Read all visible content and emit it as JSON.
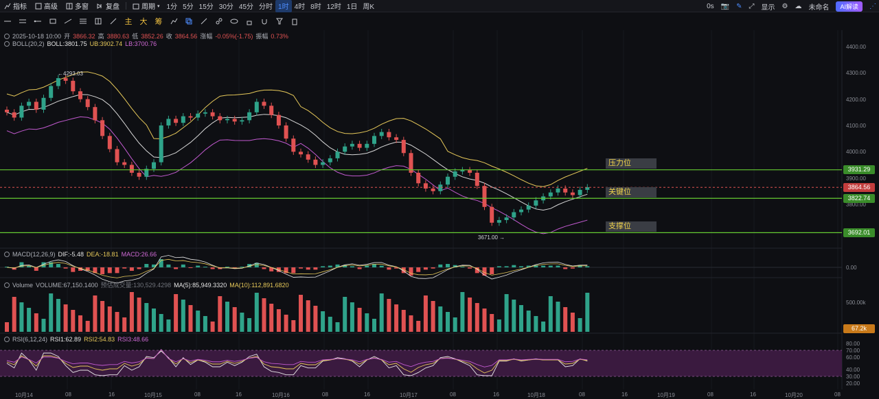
{
  "toolbar": {
    "indicators": "指标",
    "advanced": "高级",
    "multi_window": "多窗",
    "replay": "复盘",
    "period": "周期",
    "timeframes": [
      "1分",
      "5分",
      "15分",
      "30分",
      "45分",
      "分时",
      "1时",
      "4时",
      "8时",
      "12时",
      "1日",
      "周K"
    ],
    "active_timeframe": "1时",
    "delay": "0s",
    "display": "显示",
    "unnamed": "未命名",
    "ai_label": "AI解读"
  },
  "toolbar2": {
    "cn_tools": [
      "主",
      "大",
      "筹"
    ]
  },
  "ohlc": {
    "time": "2025-10-18 10:00",
    "open_lbl": "开",
    "open": "3866.32",
    "high_lbl": "高",
    "high": "3880.63",
    "low_lbl": "低",
    "low": "3852.26",
    "close_lbl": "收",
    "close": "3864.56",
    "change_lbl": "涨幅",
    "change": "-0.05%(-1.75)",
    "amp_lbl": "振幅",
    "amp": "0.73%"
  },
  "boll": {
    "name": "BOLL(20,2)",
    "mid": "BOLL:3801.75",
    "ub": "UB:3902.74",
    "lb": "LB:3700.76"
  },
  "macd": {
    "name": "MACD(12,26,9)",
    "dif": "DIF:-5.48",
    "dea": "DEA:-18.81",
    "macd": "MACD:26.66"
  },
  "volume": {
    "name": "Volume",
    "vol": "VOLUME:67,150.1400",
    "est": "预估成交量:130,529.4298",
    "ma5": "MA(5):85,949.3320",
    "ma10": "MA(10):112,891.6820"
  },
  "rsi": {
    "name": "RSI(6,12,24)",
    "r1": "RSI1:62.89",
    "r2": "RSI2:54.83",
    "r3": "RSI3:48.66"
  },
  "annotations": {
    "high_mark": "←4293.03",
    "low_mark": "3671.00 →"
  },
  "zones": {
    "resistance": "压力位",
    "key": "关键位",
    "support": "支撑位"
  },
  "price_tags": {
    "resistance": "3931.29",
    "current": "3864.56",
    "key": "3822.74",
    "support": "3692.01",
    "volume": "67.2k"
  },
  "y_axis": [
    "4400.00",
    "4300.00",
    "4200.00",
    "4100.00",
    "4000.00",
    "3900.00",
    "3800.00"
  ],
  "macd_axis": [
    "0.00"
  ],
  "vol_axis": [
    "500.00k"
  ],
  "rsi_axis": [
    "80.00",
    "70.00",
    "60.00",
    "40.00",
    "30.00",
    "20.00"
  ],
  "x_axis": [
    "10月14",
    "08",
    "16",
    "10月15",
    "08",
    "16",
    "10月16",
    "08",
    "16",
    "10月17",
    "08",
    "16",
    "10月18",
    "08",
    "16",
    "10月19",
    "08",
    "16",
    "10月20",
    "08"
  ],
  "colors": {
    "up": "#e05252",
    "down": "#2fa38a",
    "zone_line": "#66cc33",
    "boll_ub": "#e7c95a",
    "boll_mid": "#d9d9d9",
    "boll_lb": "#c25ad0"
  },
  "chart_data": {
    "type": "candlestick",
    "levels": {
      "resistance": 3931.29,
      "key": 3822.74,
      "support": 3692.01,
      "current": 3864.56
    },
    "closes": [
      4150,
      4130,
      4175,
      4190,
      4160,
      4205,
      4250,
      4280,
      4270,
      4230,
      4200,
      4170,
      4120,
      4060,
      4010,
      3960,
      3950,
      3920,
      3905,
      3935,
      3960,
      4100,
      4125,
      4110,
      4135,
      4130,
      4145,
      4150,
      4135,
      4120,
      4125,
      4115,
      4120,
      4150,
      4190,
      4175,
      4140,
      4100,
      4050,
      4000,
      3990,
      3970,
      3950,
      3960,
      3975,
      4000,
      4020,
      4030,
      4015,
      4030,
      4060,
      4075,
      4055,
      4045,
      3995,
      3920,
      3880,
      3860,
      3850,
      3875,
      3905,
      3925,
      3930,
      3920,
      3870,
      3790,
      3730,
      3740,
      3750,
      3770,
      3780,
      3795,
      3815,
      3830,
      3845,
      3860,
      3845,
      3835,
      3855,
      3865
    ]
  }
}
